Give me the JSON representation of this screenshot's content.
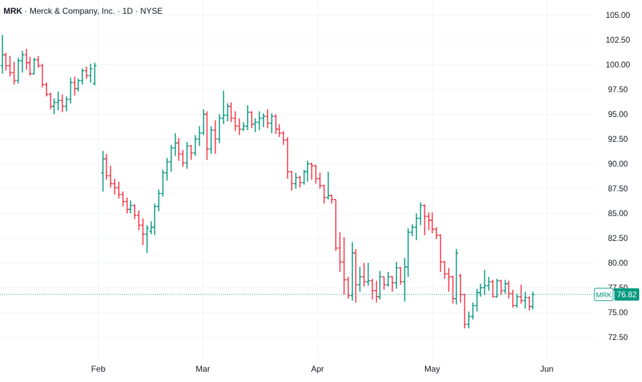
{
  "header": {
    "symbol": "MRK",
    "name": "Merck & Company, Inc.",
    "interval": "1D",
    "exchange": "NYSE",
    "separator": "·"
  },
  "price_tag": {
    "symbol": "MRK",
    "value": "76.82"
  },
  "colors": {
    "up": "#089981",
    "down": "#f23645",
    "grid": "#f0f3fa",
    "axis_text": "#131722",
    "last_price": "#089981"
  },
  "chart_data": {
    "type": "ohlc",
    "title": "MRK · Merck & Company, Inc. · 1D · NYSE",
    "ylim": [
      71.0,
      106.8
    ],
    "y_ticks": [
      "105.00",
      "102.50",
      "100.00",
      "97.50",
      "95.00",
      "92.50",
      "90.00",
      "87.50",
      "85.00",
      "82.50",
      "80.00",
      "77.50",
      "75.00",
      "72.50"
    ],
    "x_ticks": [
      "Feb",
      "Mar",
      "Apr",
      "May",
      "Jun"
    ],
    "last_price": 76.82,
    "grid": true,
    "segments": [
      {
        "start_slot": 0,
        "bars": [
          [
            99.9,
            103.0,
            99.1,
            101.0
          ],
          [
            101.0,
            101.2,
            99.4,
            99.9
          ],
          [
            99.9,
            100.9,
            98.8,
            99.2
          ],
          [
            99.2,
            100.3,
            98.0,
            98.4
          ],
          [
            98.4,
            100.7,
            98.1,
            100.4
          ],
          [
            100.4,
            101.4,
            99.2,
            101.0
          ],
          [
            101.0,
            101.6,
            99.5,
            100.2
          ],
          [
            100.2,
            100.8,
            98.9,
            99.1
          ],
          [
            99.1,
            100.7,
            99.0,
            100.5
          ],
          [
            100.5,
            100.9,
            99.7,
            99.9
          ],
          [
            99.9,
            100.1,
            97.7,
            98.0
          ],
          [
            98.0,
            98.2,
            96.8,
            97.0
          ],
          [
            97.0,
            97.2,
            95.5,
            95.8
          ],
          [
            95.8,
            96.6,
            95.0,
            96.2
          ],
          [
            96.2,
            97.3,
            95.4,
            96.4
          ],
          [
            96.4,
            97.0,
            95.2,
            95.8
          ],
          [
            95.8,
            96.8,
            95.3,
            96.5
          ],
          [
            96.5,
            98.7,
            96.1,
            98.2
          ],
          [
            98.2,
            98.8,
            96.9,
            97.6
          ],
          [
            97.6,
            98.6,
            97.3,
            98.4
          ],
          [
            98.4,
            99.6,
            98.0,
            99.4
          ],
          [
            99.4,
            99.8,
            98.6,
            98.9
          ],
          [
            98.9,
            100.1,
            98.2,
            99.6
          ],
          [
            98.1,
            100.2,
            97.9,
            99.9
          ]
        ]
      },
      {
        "start_slot": 25,
        "bars": [
          [
            89.1,
            91.3,
            87.2,
            90.5
          ],
          [
            90.5,
            91.0,
            88.4,
            88.8
          ],
          [
            88.8,
            89.8,
            87.6,
            88.0
          ],
          [
            88.0,
            88.5,
            86.9,
            87.6
          ],
          [
            87.6,
            88.2,
            86.5,
            86.9
          ],
          [
            86.9,
            87.2,
            85.7,
            86.2
          ],
          [
            86.2,
            86.6,
            85.0,
            85.4
          ],
          [
            85.4,
            86.3,
            85.0,
            85.8
          ],
          [
            85.8,
            85.9,
            84.4,
            84.8
          ],
          [
            84.8,
            85.3,
            83.3,
            83.8
          ],
          [
            83.8,
            84.5,
            81.8,
            82.9
          ],
          [
            82.9,
            83.8,
            81.0,
            83.5
          ],
          [
            83.2,
            84.2,
            82.9,
            83.6
          ],
          [
            83.6,
            86.0,
            82.8,
            85.7
          ],
          [
            85.7,
            87.4,
            85.2,
            87.0
          ],
          [
            87.0,
            89.4,
            86.7,
            89.1
          ],
          [
            89.1,
            90.6,
            88.3,
            90.2
          ],
          [
            90.2,
            91.9,
            89.2,
            91.6
          ],
          [
            91.6,
            93.1,
            90.8,
            92.1
          ],
          [
            92.1,
            92.6,
            90.3,
            91.0
          ],
          [
            91.0,
            91.4,
            89.7,
            90.1
          ],
          [
            90.1,
            92.2,
            89.5,
            91.8
          ],
          [
            91.8,
            91.9,
            90.4,
            91.1
          ],
          [
            91.1,
            92.9,
            90.8,
            92.5
          ],
          [
            92.5,
            93.8,
            91.8,
            93.1
          ],
          [
            93.1,
            95.5,
            92.9,
            95.0
          ],
          [
            95.0,
            95.3,
            90.4,
            91.5
          ],
          [
            91.5,
            93.8,
            91.0,
            93.4
          ],
          [
            93.4,
            94.4,
            91.0,
            92.5
          ],
          [
            92.5,
            95.0,
            92.1,
            94.6
          ],
          [
            94.6,
            97.4,
            94.0,
            94.9
          ],
          [
            94.9,
            96.1,
            94.3,
            95.8
          ],
          [
            95.8,
            96.2,
            94.2,
            94.6
          ],
          [
            94.6,
            95.3,
            93.3,
            93.8
          ],
          [
            93.8,
            94.6,
            92.9,
            93.5
          ],
          [
            93.5,
            94.2,
            93.3,
            93.8
          ],
          [
            93.8,
            95.9,
            93.4,
            95.2
          ],
          [
            95.2,
            95.3,
            93.6,
            94.0
          ],
          [
            94.0,
            94.6,
            93.2,
            94.2
          ],
          [
            94.2,
            95.3,
            93.4,
            94.6
          ],
          [
            94.6,
            95.1,
            93.7,
            94.8
          ],
          [
            94.8,
            95.5,
            93.6,
            94.1
          ],
          [
            94.1,
            95.1,
            93.1,
            94.8
          ],
          [
            94.8,
            95.0,
            93.0,
            93.5
          ],
          [
            93.5,
            94.0,
            92.7,
            93.1
          ],
          [
            93.1,
            93.3,
            91.9,
            92.4
          ],
          [
            92.4,
            92.7,
            88.5,
            89.2
          ],
          [
            89.2,
            89.3,
            87.3,
            88.0
          ],
          [
            88.0,
            89.1,
            87.5,
            88.6
          ],
          [
            88.6,
            88.8,
            87.6,
            88.1
          ],
          [
            88.1,
            89.4,
            87.9,
            89.2
          ],
          [
            89.2,
            90.3,
            88.2,
            90.0
          ],
          [
            90.0,
            90.1,
            88.4,
            89.8
          ],
          [
            89.8,
            89.9,
            88.0,
            88.5
          ],
          [
            88.5,
            89.1,
            87.5,
            87.8
          ],
          [
            87.8,
            87.9,
            86.0,
            86.6
          ],
          [
            86.6,
            89.2,
            86.4,
            86.8
          ],
          [
            86.8,
            86.9,
            86.0,
            86.4
          ],
          [
            86.4,
            86.4,
            81.2,
            81.5
          ],
          [
            81.5,
            83.1,
            79.1,
            80.1
          ],
          [
            80.1,
            82.6,
            76.8,
            78.3
          ],
          [
            78.3,
            78.6,
            76.4,
            76.7
          ],
          [
            76.7,
            82.1,
            76.2,
            81.0
          ],
          [
            81.0,
            81.4,
            76.0,
            77.8
          ],
          [
            77.8,
            79.6,
            77.1,
            78.6
          ],
          [
            78.6,
            80.0,
            77.6,
            78.1
          ],
          [
            78.1,
            80.0,
            77.7,
            78.2
          ],
          [
            78.2,
            78.4,
            76.3,
            77.2
          ],
          [
            77.2,
            78.2,
            76.0,
            76.6
          ],
          [
            76.6,
            79.2,
            76.3,
            78.6
          ],
          [
            78.6,
            78.6,
            77.3,
            77.8
          ],
          [
            77.8,
            79.1,
            77.6,
            78.6
          ],
          [
            78.6,
            78.7,
            77.1,
            78.0
          ],
          [
            78.0,
            80.1,
            77.4,
            79.5
          ],
          [
            79.5,
            79.6,
            77.8,
            78.1
          ],
          [
            78.1,
            80.5,
            76.1,
            79.6
          ],
          [
            79.6,
            83.5,
            78.6,
            83.1
          ],
          [
            83.1,
            83.9,
            82.7,
            83.6
          ],
          [
            83.6,
            85.0,
            82.3,
            84.5
          ],
          [
            84.5,
            86.1,
            83.8,
            85.8
          ],
          [
            85.8,
            85.9,
            82.8,
            84.7
          ],
          [
            84.7,
            85.1,
            83.3,
            84.3
          ],
          [
            84.3,
            85.1,
            83.0,
            83.4
          ],
          [
            83.4,
            83.6,
            82.4,
            82.8
          ],
          [
            82.8,
            82.9,
            79.1,
            80.1
          ],
          [
            80.1,
            80.2,
            78.4,
            78.9
          ],
          [
            78.9,
            79.5,
            77.1,
            78.6
          ],
          [
            78.6,
            78.7,
            75.9,
            76.4
          ],
          [
            76.4,
            81.4,
            75.8,
            81.0
          ],
          [
            78.7,
            78.9,
            76.0,
            76.8
          ],
          [
            76.8,
            76.9,
            73.4,
            73.8
          ],
          [
            73.8,
            75.1,
            73.4,
            74.6
          ],
          [
            74.6,
            76.0,
            74.3,
            75.7
          ],
          [
            75.7,
            77.4,
            75.1,
            77.0
          ],
          [
            77.0,
            77.9,
            76.6,
            77.5
          ],
          [
            77.5,
            79.3,
            76.8,
            77.7
          ],
          [
            77.7,
            78.6,
            77.2,
            78.1
          ],
          [
            78.1,
            78.3,
            76.5,
            76.6
          ],
          [
            76.6,
            78.4,
            76.5,
            78.2
          ],
          [
            78.2,
            78.3,
            76.8,
            77.2
          ],
          [
            77.2,
            78.3,
            76.9,
            77.9
          ],
          [
            77.9,
            78.2,
            76.4,
            76.9
          ],
          [
            76.9,
            77.3,
            75.5,
            75.7
          ],
          [
            75.7,
            76.9,
            75.5,
            76.6
          ],
          [
            76.6,
            77.8,
            75.9,
            76.2
          ],
          [
            76.2,
            77.1,
            75.4,
            76.5
          ],
          [
            76.5,
            76.6,
            75.2,
            75.6
          ],
          [
            75.6,
            77.1,
            75.3,
            76.8
          ]
        ]
      }
    ]
  }
}
